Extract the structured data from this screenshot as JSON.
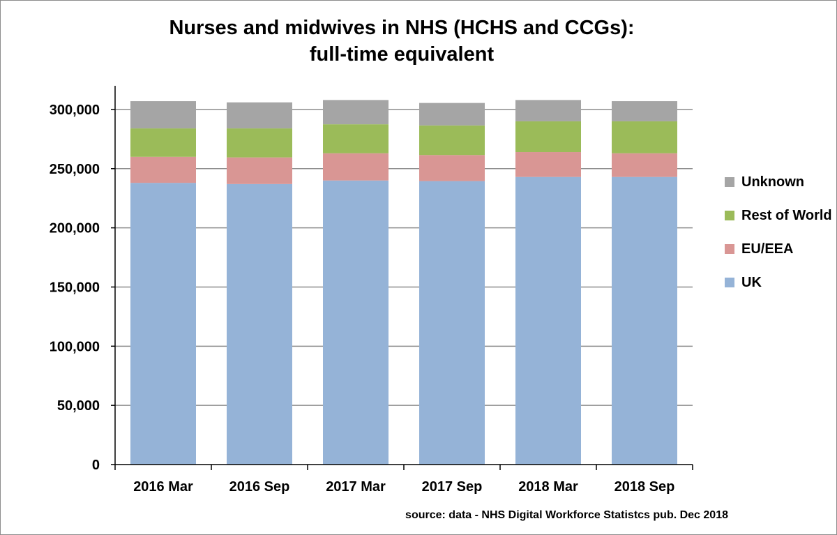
{
  "title_line1": "Nurses and midwives in NHS (HCHS and CCGs):",
  "title_line2": "full-time equivalent",
  "source": "source: data - NHS Digital Workforce Statistcs pub. Dec 2018",
  "chart_data": {
    "type": "bar",
    "stacked": true,
    "title": "Nurses and midwives in NHS (HCHS and CCGs): full-time equivalent",
    "categories": [
      "2016 Mar",
      "2016 Sep",
      "2017 Mar",
      "2017 Sep",
      "2018 Mar",
      "2018 Sep"
    ],
    "series": [
      {
        "name": "UK",
        "color": "#95b3d7",
        "values": [
          238000,
          237000,
          240000,
          239500,
          243000,
          243000
        ]
      },
      {
        "name": "EU/EEA",
        "color": "#d99694",
        "values": [
          22000,
          22500,
          23000,
          22000,
          21000,
          20000
        ]
      },
      {
        "name": "Rest of World",
        "color": "#9bbb59",
        "values": [
          24000,
          24500,
          24500,
          25000,
          26000,
          27000
        ]
      },
      {
        "name": "Unknown",
        "color": "#a5a5a5",
        "values": [
          23000,
          22000,
          20500,
          19000,
          18000,
          17000
        ]
      }
    ],
    "ylim": [
      0,
      300000
    ],
    "yticks": [
      0,
      50000,
      100000,
      150000,
      200000,
      250000,
      300000
    ],
    "ytick_labels": [
      "0",
      "50,000",
      "100,000",
      "150,000",
      "200,000",
      "250,000",
      "300,000"
    ],
    "grid": true,
    "legend_position": "right",
    "legend_order": [
      "Unknown",
      "Rest of World",
      "EU/EEA",
      "UK"
    ]
  }
}
